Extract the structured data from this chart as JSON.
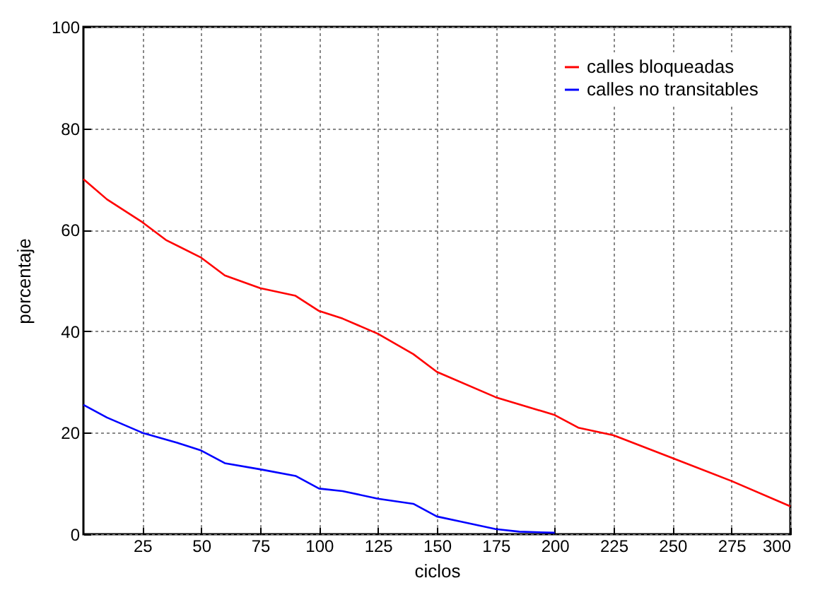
{
  "chart_data": {
    "type": "line",
    "xlabel": "ciclos",
    "ylabel": "porcentaje",
    "xlim": [
      0,
      300
    ],
    "ylim": [
      0,
      100
    ],
    "xticks": [
      25,
      50,
      75,
      100,
      125,
      150,
      175,
      200,
      225,
      250,
      275,
      300
    ],
    "yticks": [
      0,
      20,
      40,
      60,
      80,
      100
    ],
    "grid": true,
    "legend": "top right",
    "line_style": "solid",
    "marker": "none",
    "series": [
      {
        "name": "calles bloqueadas",
        "color": "#ff0000",
        "x": [
          0,
          10,
          25,
          35,
          50,
          60,
          75,
          90,
          100,
          110,
          125,
          140,
          150,
          175,
          200,
          210,
          225,
          250,
          275,
          300
        ],
        "values": [
          70,
          66,
          61.5,
          58,
          54.5,
          51,
          48.5,
          47,
          44,
          42.5,
          39.5,
          35.5,
          32,
          27,
          23.5,
          21,
          19.5,
          15,
          10.5,
          5.5
        ]
      },
      {
        "name": "calles no transitables",
        "color": "#0000ff",
        "x": [
          0,
          10,
          25,
          40,
          50,
          60,
          75,
          90,
          100,
          110,
          125,
          140,
          150,
          160,
          175,
          185,
          200
        ],
        "values": [
          25.5,
          23,
          20,
          18,
          16.5,
          14,
          12.8,
          11.5,
          9,
          8.5,
          7,
          6,
          3.5,
          2.5,
          1,
          0.5,
          0.3
        ]
      }
    ]
  }
}
